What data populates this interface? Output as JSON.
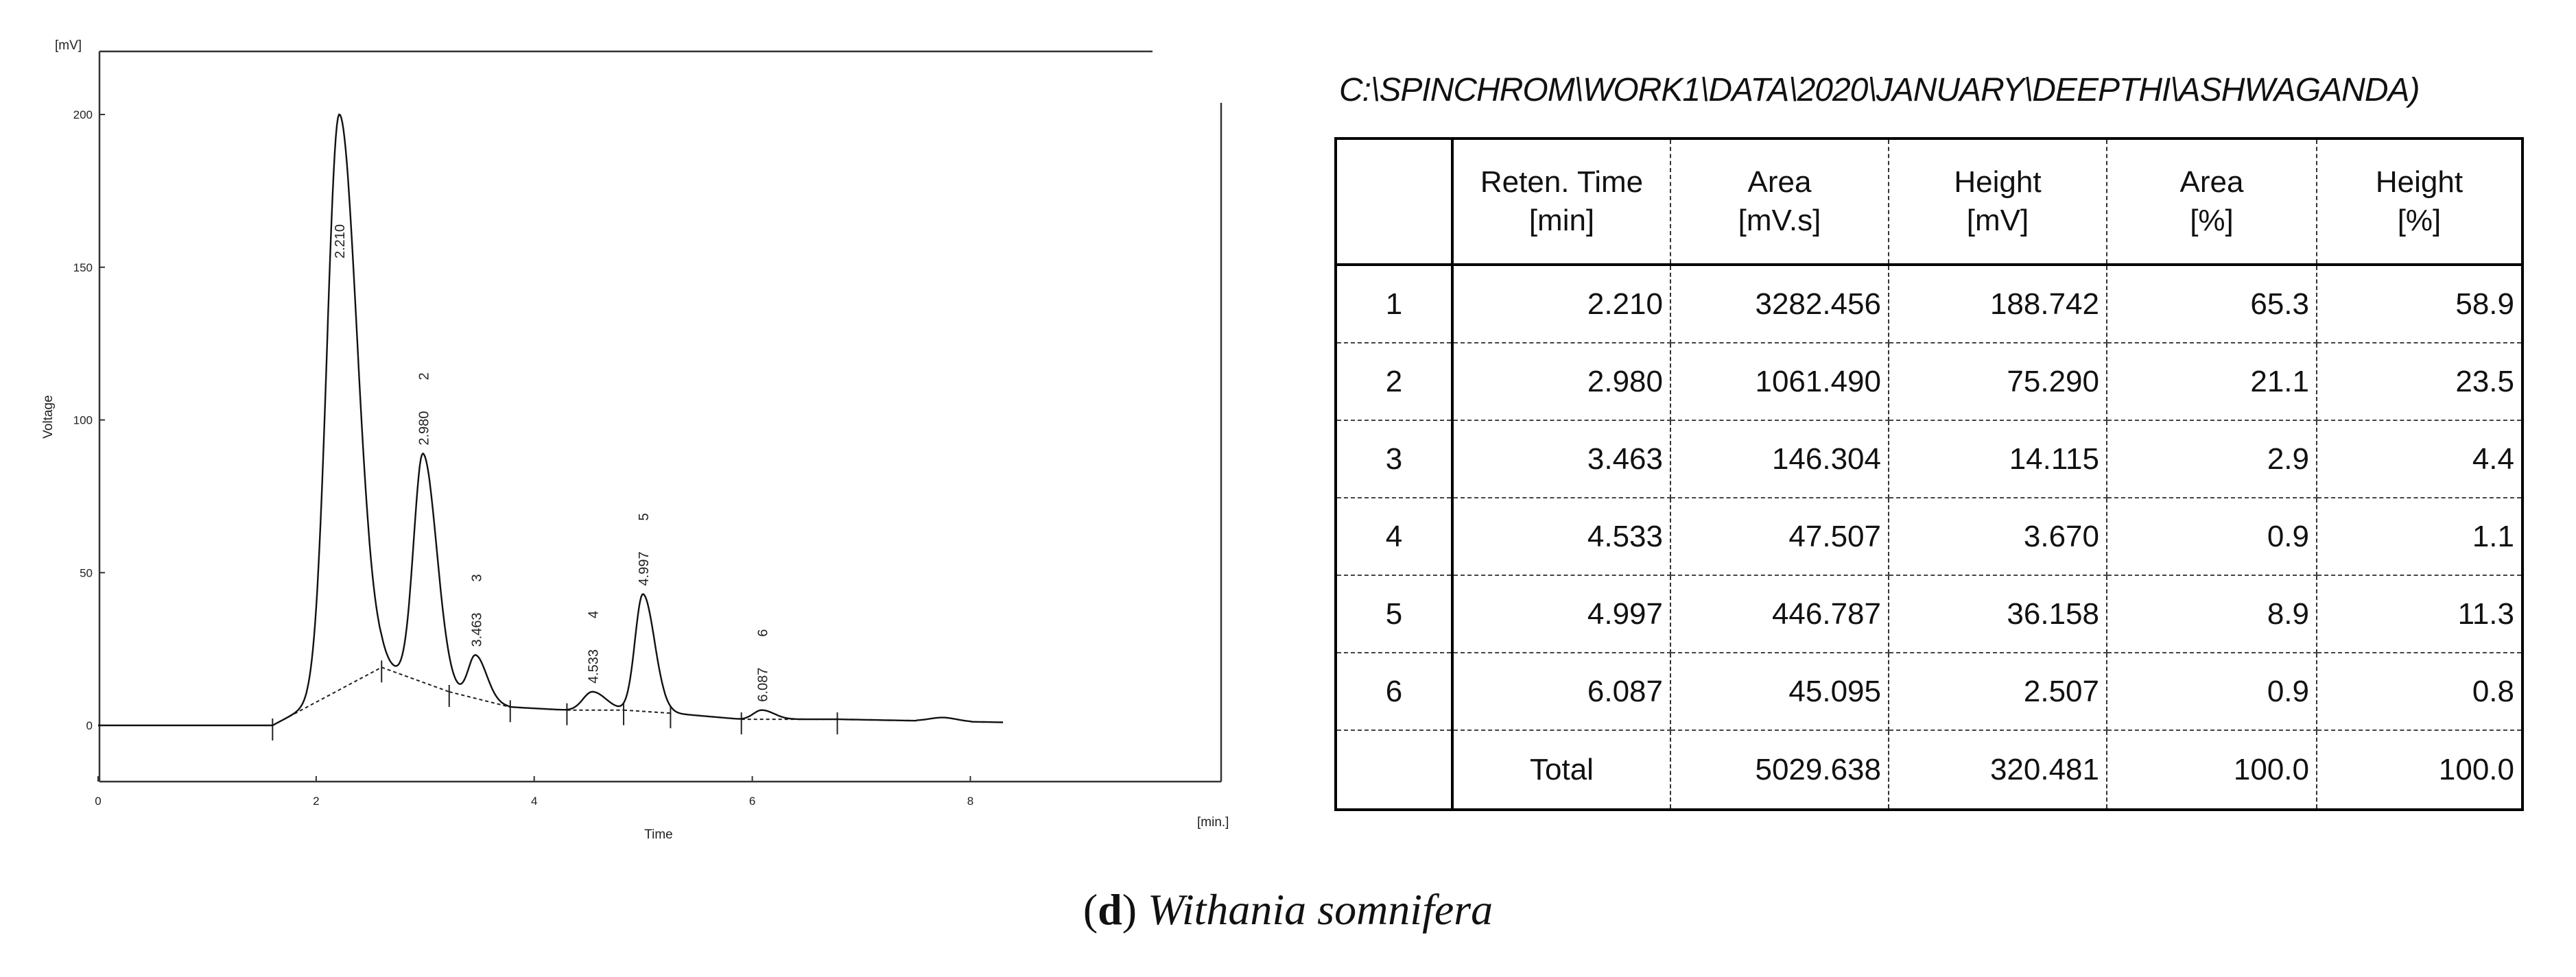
{
  "chart_data": {
    "type": "line",
    "xlabel": "Time",
    "ylabel": "Voltage",
    "x_unit": "[min.]",
    "y_unit": "[mV]",
    "xlim": [
      0,
      8.5
    ],
    "ylim": [
      -20,
      220
    ],
    "x_ticks": [
      0,
      2,
      4,
      6,
      8
    ],
    "y_ticks": [
      0,
      50,
      100,
      150,
      200
    ],
    "grid": false,
    "peaks": [
      {
        "id": "1",
        "rt": 2.21,
        "label": "2.210",
        "apex_mv": 200,
        "sigma": 0.13
      },
      {
        "id": "2",
        "rt": 2.98,
        "label": "2.980",
        "apex_mv": 89,
        "sigma": 0.1
      },
      {
        "id": "3",
        "rt": 3.463,
        "label": "3.463",
        "apex_mv": 23,
        "sigma": 0.08
      },
      {
        "id": "4",
        "rt": 4.533,
        "label": "4.533",
        "apex_mv": 11,
        "sigma": 0.1
      },
      {
        "id": "5",
        "rt": 4.997,
        "label": "4.997",
        "apex_mv": 43,
        "sigma": 0.085
      },
      {
        "id": "6",
        "rt": 6.087,
        "label": "6.087",
        "apex_mv": 5,
        "sigma": 0.09
      }
    ],
    "baseline_markers_min": [
      1.6,
      2.6,
      3.22,
      3.78,
      4.3,
      4.82,
      5.25,
      5.9,
      6.78
    ]
  },
  "table": {
    "path": "C:\\SPINCHROM\\WORK1\\DATA\\2020\\JANUARY\\DEEPTHI\\ASHWAGANDA)",
    "headers": [
      {
        "line1": "",
        "line2": ""
      },
      {
        "line1": "Reten. Time",
        "line2": "[min]"
      },
      {
        "line1": "Area",
        "line2": "[mV.s]"
      },
      {
        "line1": "Height",
        "line2": "[mV]"
      },
      {
        "line1": "Area",
        "line2": "[%]"
      },
      {
        "line1": "Height",
        "line2": "[%]"
      }
    ],
    "rows": [
      {
        "idx": "1",
        "rt": "2.210",
        "area": "3282.456",
        "height": "188.742",
        "area_pct": "65.3",
        "height_pct": "58.9"
      },
      {
        "idx": "2",
        "rt": "2.980",
        "area": "1061.490",
        "height": "75.290",
        "area_pct": "21.1",
        "height_pct": "23.5"
      },
      {
        "idx": "3",
        "rt": "3.463",
        "area": "146.304",
        "height": "14.115",
        "area_pct": "2.9",
        "height_pct": "4.4"
      },
      {
        "idx": "4",
        "rt": "4.533",
        "area": "47.507",
        "height": "3.670",
        "area_pct": "0.9",
        "height_pct": "1.1"
      },
      {
        "idx": "5",
        "rt": "4.997",
        "area": "446.787",
        "height": "36.158",
        "area_pct": "8.9",
        "height_pct": "11.3"
      },
      {
        "idx": "6",
        "rt": "6.087",
        "area": "45.095",
        "height": "2.507",
        "area_pct": "0.9",
        "height_pct": "0.8"
      }
    ],
    "total": {
      "label": "Total",
      "area": "5029.638",
      "height": "320.481",
      "area_pct": "100.0",
      "height_pct": "100.0"
    }
  },
  "caption": {
    "letter": "d",
    "species": "Withania somnifera"
  }
}
